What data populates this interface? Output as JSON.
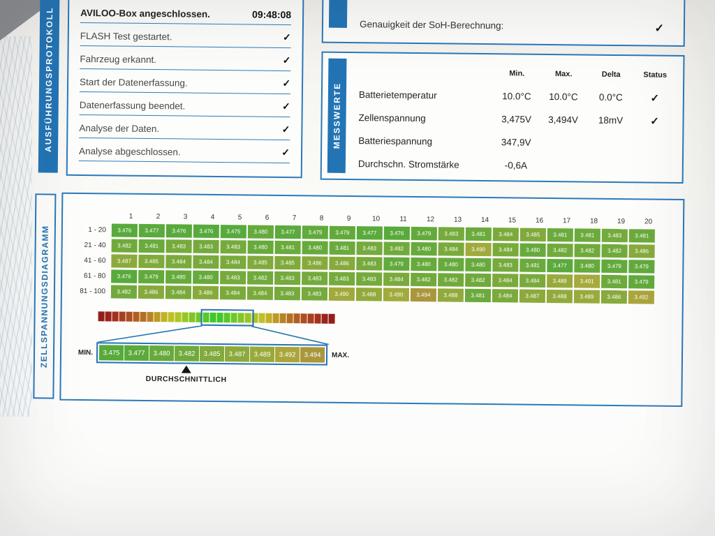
{
  "sidebar": {
    "execution": "AUSFÜHRUNGSPROTOKOLL",
    "messwerte": "MESSWERTE",
    "diagram": "ZELLSPANNUNGSDIAGRAMM"
  },
  "protocol": {
    "rows": [
      {
        "label": "AVILOO-Box angeschlossen.",
        "value": "09:48:08"
      },
      {
        "label": "FLASH Test gestartet.",
        "value": "✓"
      },
      {
        "label": "Fahrzeug erkannt.",
        "value": "✓"
      },
      {
        "label": "Start der Datenerfassung.",
        "value": "✓"
      },
      {
        "label": "Datenerfassung beendet.",
        "value": "✓"
      },
      {
        "label": "Analyse der Daten.",
        "value": "✓"
      },
      {
        "label": "Analyse abgeschlossen.",
        "value": "✓"
      }
    ]
  },
  "soh": {
    "label": "Genauigkeit der SoH-Berechnung:",
    "check": "✓"
  },
  "messwerte": {
    "headers": [
      "Min.",
      "Max.",
      "Delta",
      "Status"
    ],
    "rows": [
      {
        "label": "Batterietemperatur",
        "min": "10.0°C",
        "max": "10.0°C",
        "delta": "0.0°C",
        "status": "✓"
      },
      {
        "label": "Zellenspannung",
        "min": "3,475V",
        "max": "3,494V",
        "delta": "18mV",
        "status": "✓"
      },
      {
        "label": "Batteriespannung",
        "min": "347,9V",
        "max": "",
        "delta": "",
        "status": ""
      },
      {
        "label": "Durchschn. Stromstärke",
        "min": "-0,6A",
        "max": "",
        "delta": "",
        "status": ""
      }
    ]
  },
  "chart_data": {
    "type": "heatmap",
    "title": "ZELLSPANNUNGSDIAGRAMM",
    "unit": "V",
    "columns": [
      1,
      2,
      3,
      4,
      5,
      6,
      7,
      8,
      9,
      10,
      11,
      12,
      13,
      14,
      15,
      16,
      17,
      18,
      19,
      20
    ],
    "row_labels": [
      "1 - 20",
      "21 - 40",
      "41 - 60",
      "61 - 80",
      "81 - 100"
    ],
    "values": [
      [
        3.476,
        3.477,
        3.476,
        3.476,
        3.475,
        3.48,
        3.477,
        3.479,
        3.479,
        3.477,
        3.476,
        3.479,
        3.483,
        3.481,
        3.484,
        3.485,
        3.481,
        3.481,
        3.483,
        3.481
      ],
      [
        3.482,
        3.481,
        3.483,
        3.483,
        3.483,
        3.48,
        3.481,
        3.48,
        3.481,
        3.483,
        3.482,
        3.48,
        3.484,
        3.49,
        3.484,
        3.48,
        3.482,
        3.482,
        3.482,
        3.486
      ],
      [
        3.487,
        3.485,
        3.484,
        3.484,
        3.484,
        3.485,
        3.485,
        3.486,
        3.486,
        3.483,
        3.479,
        3.48,
        3.48,
        3.48,
        3.483,
        3.481,
        3.477,
        3.48,
        3.479,
        3.479
      ],
      [
        3.476,
        3.479,
        3.48,
        3.48,
        3.483,
        3.482,
        3.483,
        3.483,
        3.483,
        3.483,
        3.484,
        3.482,
        3.482,
        3.482,
        3.484,
        3.484,
        3.489,
        3.491,
        3.481,
        3.479
      ],
      [
        3.482,
        3.486,
        3.484,
        3.486,
        3.484,
        3.484,
        3.483,
        3.483,
        3.49,
        3.488,
        3.49,
        3.494,
        3.488,
        3.481,
        3.484,
        3.487,
        3.488,
        3.489,
        3.486,
        3.492
      ]
    ],
    "value_range": [
      3.475,
      3.494
    ],
    "scale_ticks": [
      3.475,
      3.477,
      3.48,
      3.482,
      3.485,
      3.487,
      3.489,
      3.492,
      3.494
    ],
    "legend_segments": 34,
    "min_label": "MIN.",
    "max_label": "MAX.",
    "average_label": "DURCHSCHNITTLICH"
  },
  "colors": {
    "accent_blue": "#2374b5",
    "check": "#111111"
  }
}
